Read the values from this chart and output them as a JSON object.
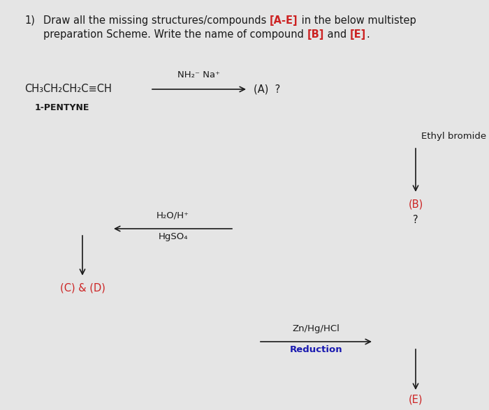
{
  "bg_color": "#e5e5e5",
  "dark_color": "#1a1a1a",
  "red_color": "#cc2222",
  "blue_color": "#1a1ab0",
  "arrow_color": "#1a1a1a",
  "title_num": "1)",
  "title_main": "Draw all the missing structures/compounds ",
  "title_ae": "[A-E]",
  "title_mid": " in the below multistep",
  "title_line2a": "preparation Scheme. Write the name of compound ",
  "title_b": "[B]",
  "title_and": " and ",
  "title_e": "[E]",
  "title_dot": ".",
  "pentyne": "CH₃CH₂CH₂C≡CH",
  "pentyne_label": "1-PENTYNE",
  "reagent1": "NH₂⁻ Na⁺",
  "label_A": "(A)  ?",
  "ethyl_bromide": "Ethyl bromide",
  "label_B": "(B)",
  "question_B": "?",
  "reagent2a": "H₂O/H⁺",
  "reagent2b": "HgSO₄",
  "label_CD": "(C) & (D)",
  "reagent3a": "Zn/Hg/HCl",
  "reagent3b": "Reduction",
  "label_E": "(E)"
}
